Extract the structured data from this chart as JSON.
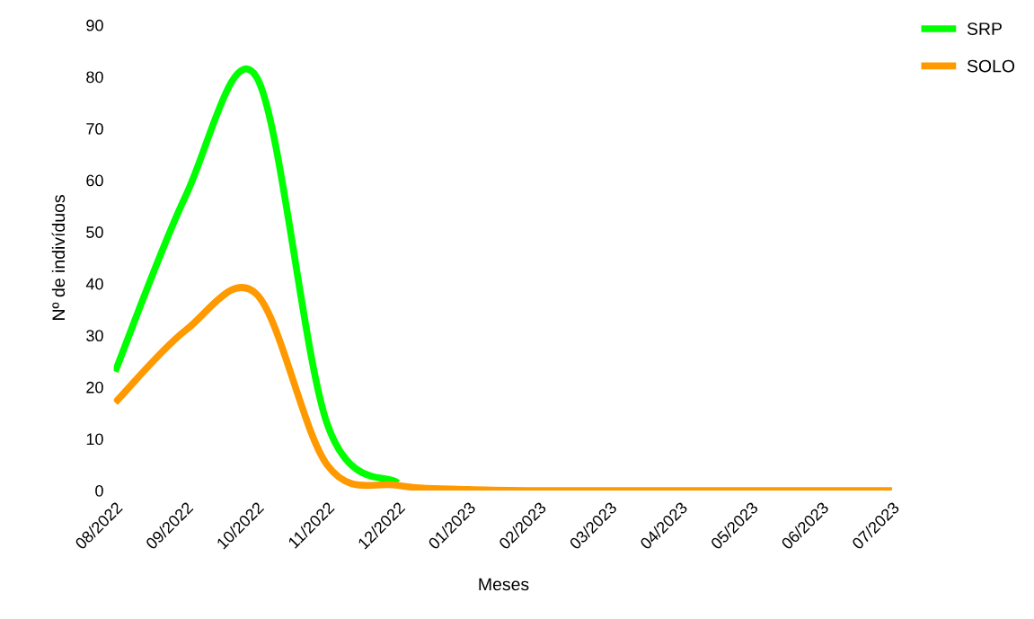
{
  "chart_data": {
    "type": "line",
    "xlabel": "Meses",
    "ylabel": "Nº de indivíduos",
    "categories": [
      "08/2022",
      "09/2022",
      "10/2022",
      "11/2022",
      "12/2022",
      "01/2023",
      "02/2023",
      "03/2023",
      "04/2023",
      "05/2023",
      "06/2023",
      "07/2023"
    ],
    "series": [
      {
        "name": "SRP",
        "color": "#00ff00",
        "values": [
          23,
          57,
          80,
          13,
          1.5,
          null,
          null,
          null,
          null,
          null,
          null,
          null
        ]
      },
      {
        "name": "SOLO",
        "color": "#ff9900",
        "values": [
          17,
          31,
          38,
          5,
          1,
          0.2,
          0,
          0,
          0,
          0,
          0,
          0
        ]
      }
    ],
    "ylim": [
      0,
      90
    ],
    "yticks": [
      0,
      10,
      20,
      30,
      40,
      50,
      60,
      70,
      80,
      90
    ],
    "legend": "top right",
    "grid": false,
    "marker": "none",
    "line_style": "solid"
  }
}
